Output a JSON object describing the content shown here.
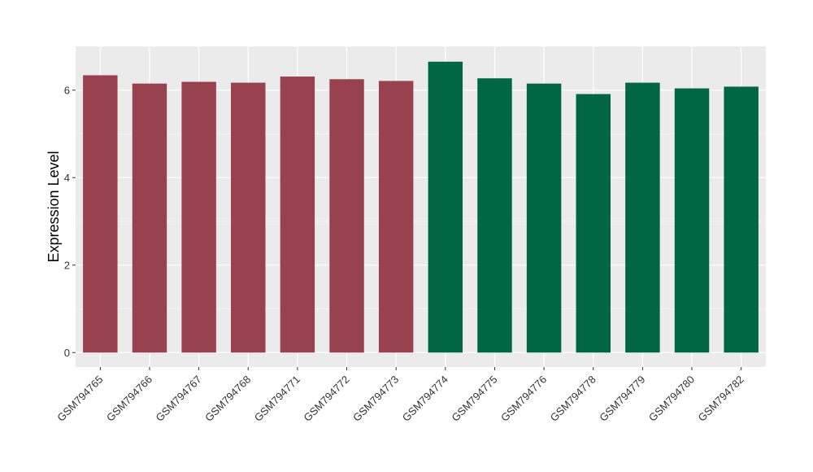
{
  "chart_data": {
    "type": "bar",
    "title": "",
    "xlabel": "",
    "ylabel": "Expression Level",
    "ylim": [
      -0.33,
      7.0
    ],
    "yticks": [
      0,
      2,
      4,
      6
    ],
    "grid": true,
    "categories": [
      "GSM794765",
      "GSM794766",
      "GSM794767",
      "GSM794768",
      "GSM794771",
      "GSM794772",
      "GSM794773",
      "GSM794774",
      "GSM794775",
      "GSM794776",
      "GSM794778",
      "GSM794779",
      "GSM794780",
      "GSM794782"
    ],
    "values": [
      6.34,
      6.15,
      6.19,
      6.17,
      6.31,
      6.25,
      6.21,
      6.65,
      6.27,
      6.15,
      5.91,
      6.17,
      6.04,
      6.08
    ],
    "groups": [
      "A",
      "A",
      "A",
      "A",
      "A",
      "A",
      "A",
      "B",
      "B",
      "B",
      "B",
      "B",
      "B",
      "B"
    ],
    "colors": {
      "A": "#99424f",
      "B": "#006644"
    },
    "panel_background": "#ebebeb",
    "gridline_color": "#ffffff"
  }
}
